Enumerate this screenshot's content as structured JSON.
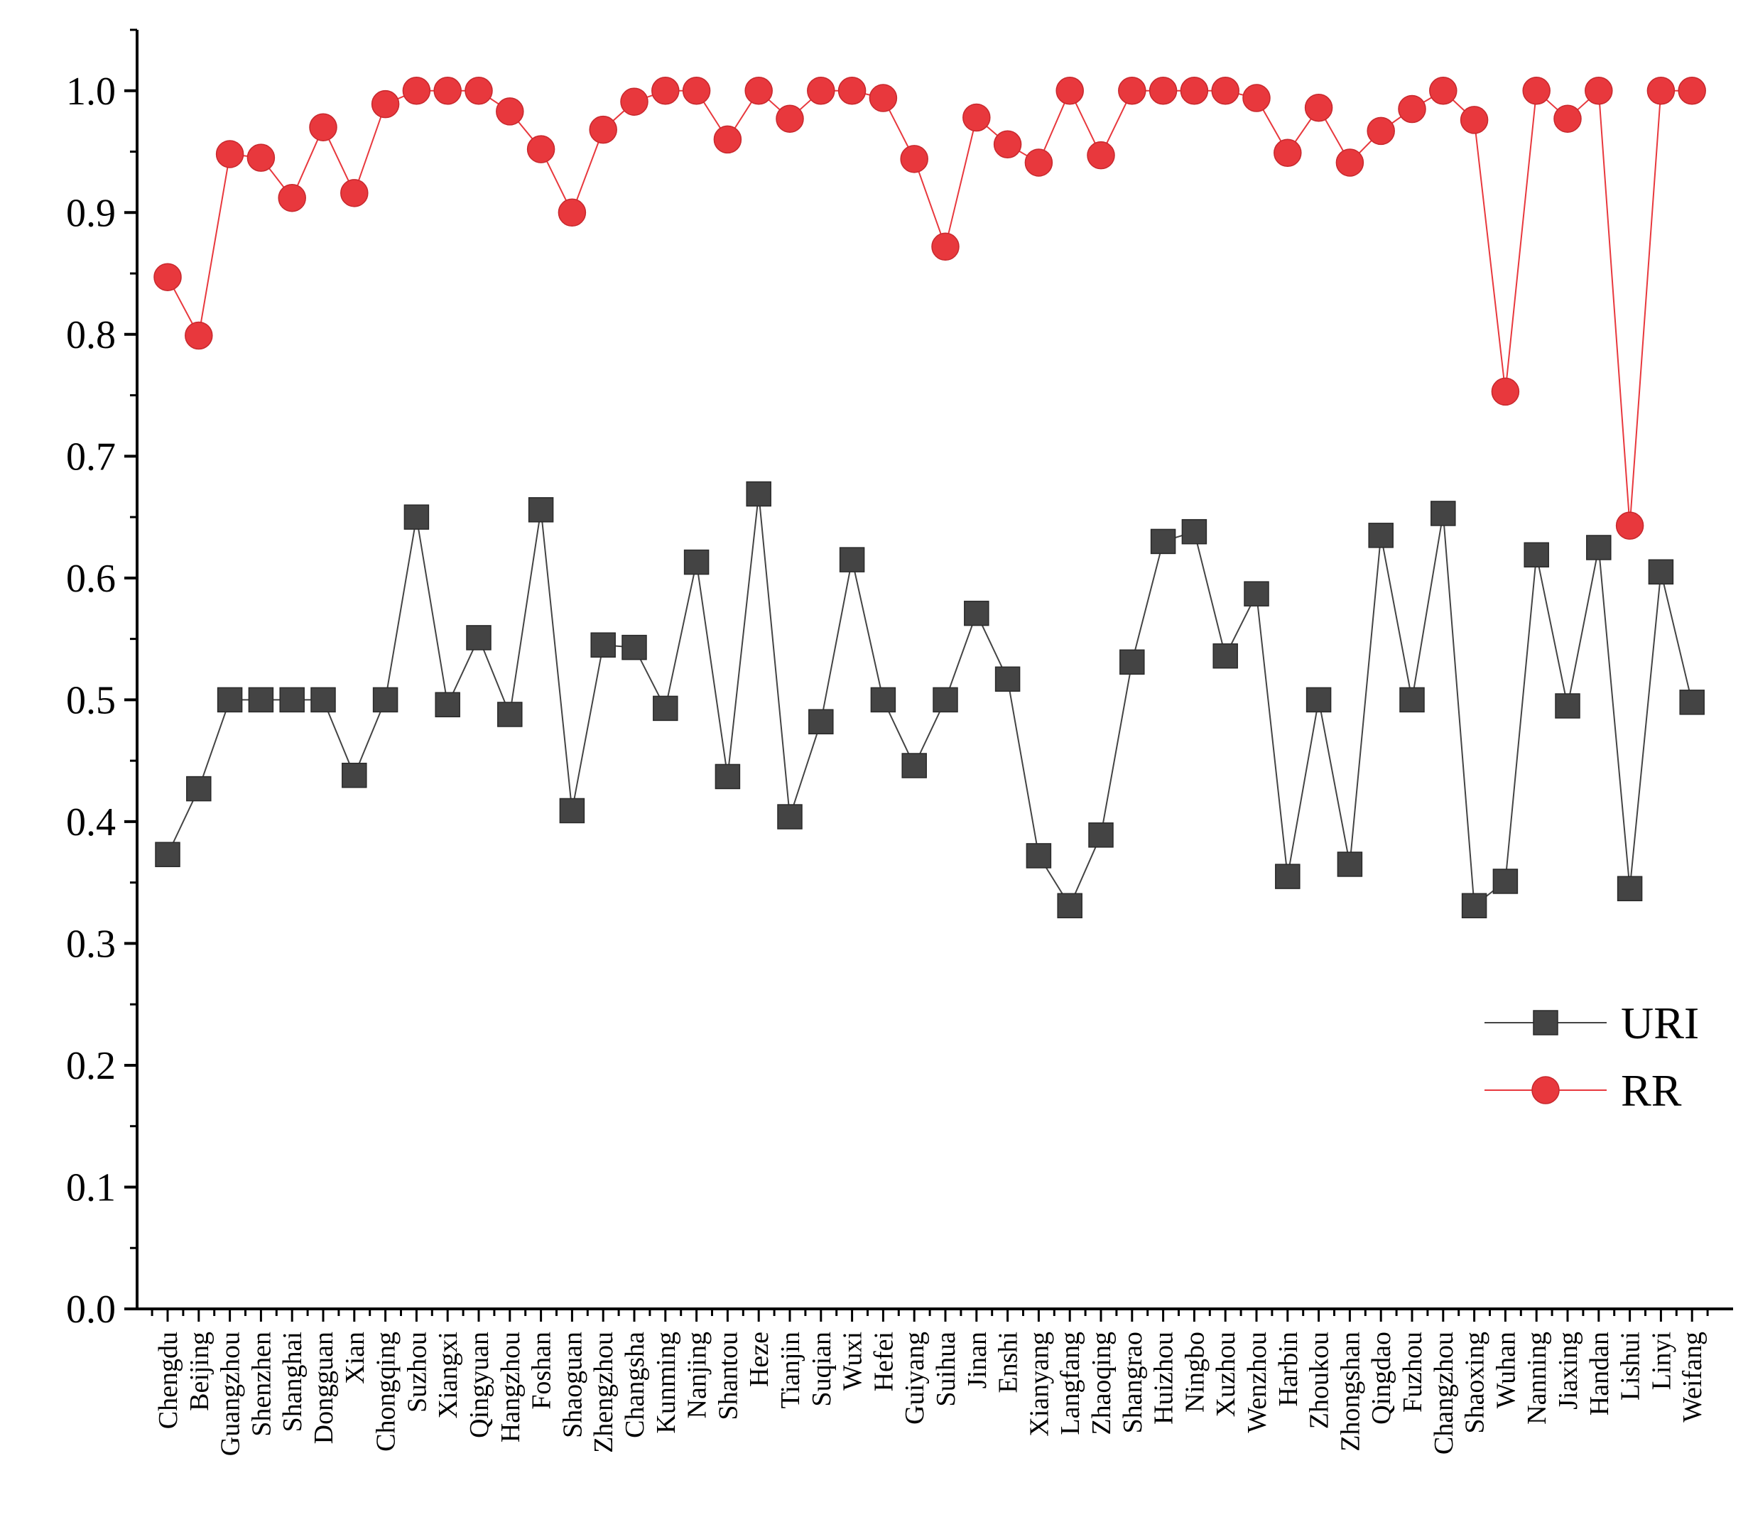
{
  "chart_data": {
    "type": "line",
    "title": "",
    "xlabel": "",
    "ylabel": "",
    "ylim": [
      0,
      1.05
    ],
    "yticks": [
      "0.0",
      "0.1",
      "0.2",
      "0.3",
      "0.4",
      "0.5",
      "0.6",
      "0.7",
      "0.8",
      "0.9",
      "1.0"
    ],
    "legend_position": "right",
    "categories": [
      "Chengdu",
      "Beijing",
      "Guangzhou",
      "Shenzhen",
      "Shanghai",
      "Dongguan",
      "Xian",
      "Chongqing",
      "Suzhou",
      "Xiangxi",
      "Qingyuan",
      "Hangzhou",
      "Foshan",
      "Shaoguan",
      "Zhengzhou",
      "Changsha",
      "Kunming",
      "Nanjing",
      "Shantou",
      "Heze",
      "Tianjin",
      "Suqian",
      "Wuxi",
      "Hefei",
      "Guiyang",
      "Suihua",
      "Jinan",
      "Enshi",
      "Xianyang",
      "Langfang",
      "Zhaoqing",
      "Shangrao",
      "Huizhou",
      "Ningbo",
      "Xuzhou",
      "Wenzhou",
      "Harbin",
      "Zhoukou",
      "Zhongshan",
      "Qingdao",
      "Fuzhou",
      "Changzhou",
      "Shaoxing",
      "Wuhan",
      "Nanning",
      "Jiaxing",
      "Handan",
      "Lishui",
      "Linyi",
      "Weifang"
    ],
    "series": [
      {
        "name": "URI",
        "marker": "square",
        "color": "#444444",
        "values": [
          0.373,
          0.427,
          0.5,
          0.5,
          0.5,
          0.5,
          0.438,
          0.5,
          0.65,
          0.496,
          0.551,
          0.488,
          0.656,
          0.409,
          0.545,
          0.543,
          0.493,
          0.613,
          0.437,
          0.669,
          0.404,
          0.482,
          0.615,
          0.5,
          0.446,
          0.5,
          0.571,
          0.517,
          0.372,
          0.331,
          0.389,
          0.531,
          0.63,
          0.638,
          0.536,
          0.587,
          0.355,
          0.5,
          0.365,
          0.635,
          0.5,
          0.653,
          0.331,
          0.351,
          0.619,
          0.495,
          0.625,
          0.345,
          0.605,
          0.498
        ]
      },
      {
        "name": "RR",
        "marker": "circle",
        "color": "#e8383d",
        "values": [
          0.847,
          0.799,
          0.948,
          0.945,
          0.912,
          0.97,
          0.916,
          0.989,
          1.0,
          1.0,
          1.0,
          0.983,
          0.952,
          0.9,
          0.968,
          0.991,
          1.0,
          1.0,
          0.96,
          1.0,
          0.977,
          1.0,
          1.0,
          0.994,
          0.944,
          0.872,
          0.978,
          0.956,
          0.941,
          1.0,
          0.947,
          1.0,
          1.0,
          1.0,
          1.0,
          0.994,
          0.949,
          0.986,
          0.941,
          0.967,
          0.985,
          1.0,
          0.976,
          0.753,
          1.0,
          0.977,
          1.0,
          0.643,
          1.0,
          1.0
        ]
      }
    ]
  }
}
